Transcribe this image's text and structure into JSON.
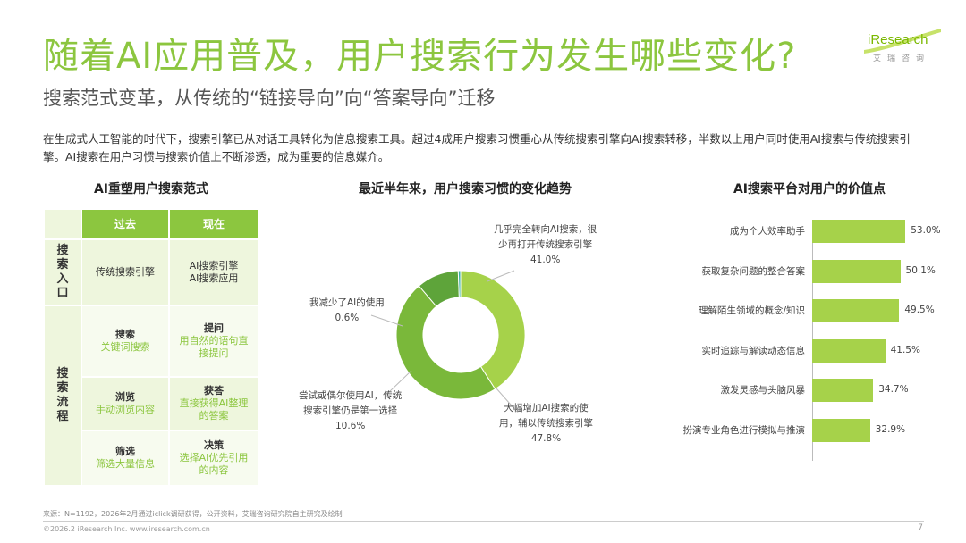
{
  "title": "随着AI应用普及，用户搜索行为发生哪些变化?",
  "subtitle": "搜索范式变革，从传统的“链接导向”向“答案导向”迁移",
  "intro": "在生成式人工智能的时代下，搜索引擎已从对话工具转化为信息搜索工具。超过4成用户搜索习惯重心从传统搜索引擎向AI搜索转移，半数以上用户同时使用AI搜索与传统搜索引擎。AI搜索在用户习惯与搜索价值上不断渗透，成为重要的信息媒介。",
  "logo": {
    "text": "iResearch",
    "cn": "艾瑞咨询",
    "accent": "#7ab800"
  },
  "table": {
    "title": "AI重塑用户搜索范式",
    "headers": [
      "过去",
      "现在"
    ],
    "group1": "搜索入口",
    "group2": "搜索流程",
    "rows": [
      {
        "past_a": "传统搜索引擎",
        "past_b": "",
        "now_a": "AI搜索引擎",
        "now_b": "AI搜索应用"
      },
      {
        "past_a": "搜索",
        "past_b": "关键词搜索",
        "now_a": "提问",
        "now_b": "用自然的语句直接提问"
      },
      {
        "past_a": "浏览",
        "past_b": "手动浏览内容",
        "now_a": "获答",
        "now_b": "直接获得AI整理的答案"
      },
      {
        "past_a": "筛选",
        "past_b": "筛选大量信息",
        "now_a": "决策",
        "now_b": "选择AI优先引用的内容"
      }
    ]
  },
  "donut": {
    "title": "最近半年来，用户搜索习惯的变化趋势",
    "slices": [
      {
        "label": "几乎完全转向AI搜索，很少再打开传统搜索引擎",
        "line1": "几乎完全转向AI搜索，很",
        "line2": "少再打开传统搜索引擎",
        "value": 41.0,
        "pct": "41.0%",
        "color": "#a6d24a"
      },
      {
        "label": "大幅增加AI搜索的使用，辅以传统搜索引擎",
        "line1": "大幅增加AI搜索的使",
        "line2": "用，辅以传统搜索引擎",
        "value": 47.8,
        "pct": "47.8%",
        "color": "#7ab83a"
      },
      {
        "label": "尝试或偶尔使用AI，传统搜索引擎仍是第一选择",
        "line1": "尝试或偶尔使用AI，传统",
        "line2": "搜索引擎仍是第一选择",
        "value": 10.6,
        "pct": "10.6%",
        "color": "#5ea43a"
      },
      {
        "label": "我减少了AI的使用",
        "line1": "我减少了AI的使用",
        "line2": "",
        "value": 0.6,
        "pct": "0.6%",
        "color": "#3ab0a0"
      }
    ]
  },
  "chart_data": {
    "type": "bar",
    "title": "AI搜索平台对用户的价值点",
    "categories": [
      "成为个人效率助手",
      "获取复杂问题的整合答案",
      "理解陌生领域的概念/知识",
      "实时追踪与解读动态信息",
      "激发灵感与头脑风暴",
      "扮演专业角色进行模拟与推演"
    ],
    "values": [
      53.0,
      50.1,
      49.5,
      41.5,
      34.7,
      32.9
    ],
    "labels": [
      "53.0%",
      "50.1%",
      "49.5%",
      "41.5%",
      "34.7%",
      "32.9%"
    ],
    "color": "#a6d24a",
    "xlim": [
      0,
      60
    ]
  },
  "source": "来源：N=1192，2026年2月通过iclick调研获得，公开资料，艾瑞咨询研究院自主研究及绘制",
  "copyright": "©2026.2 iResearch Inc. www.iresearch.com.cn",
  "page": "7"
}
